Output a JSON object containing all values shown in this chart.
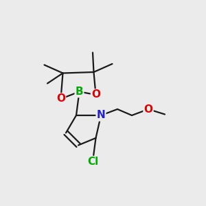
{
  "background_color": "#ebebeb",
  "bond_color": "#1a1a1a",
  "atom_colors": {
    "B": "#00aa00",
    "O": "#dd0000",
    "N": "#2222cc",
    "Cl": "#00aa00",
    "C": "#1a1a1a"
  },
  "bond_width": 1.6,
  "fig_size": [
    3.0,
    3.0
  ],
  "dpi": 100
}
